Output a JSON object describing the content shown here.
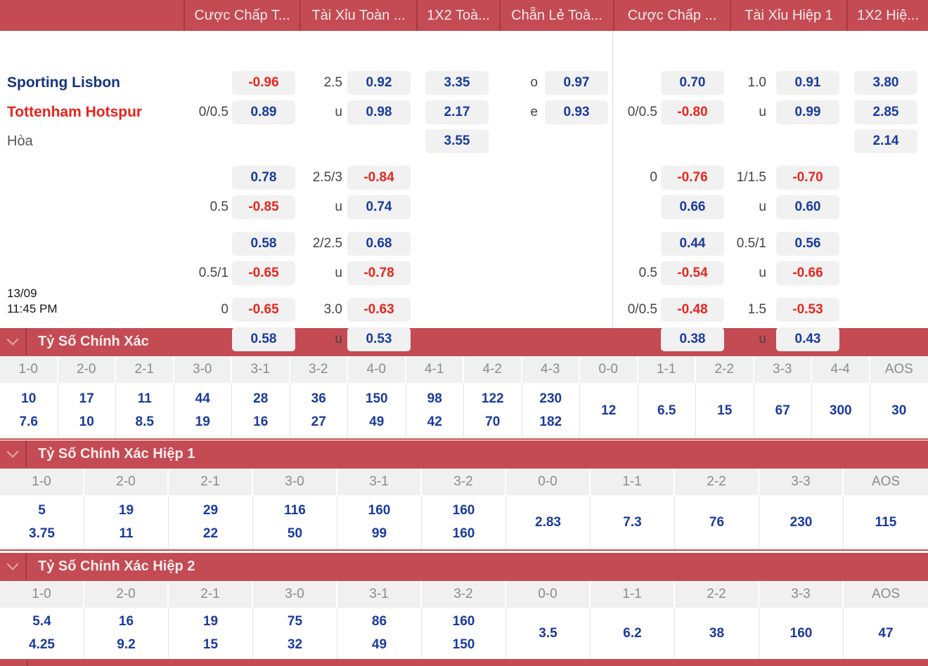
{
  "colors": {
    "bar_red": "#C44B53",
    "bar_divider": "#A23B43",
    "table_border_red": "#C0504D",
    "odds_blue": "#1A3A9E",
    "odds_red": "#E8261E",
    "box_bg": "#F1F1F1",
    "home_blue": "#17357E",
    "away_red": "#E8231B"
  },
  "top_header": {
    "columns": [
      "",
      "Cược Chấp T...",
      "Tài Xỉu Toàn ...",
      "1X2 Toà...",
      "Chẵn Lẻ Toà...",
      "Cược Chấp ...",
      "Tài Xỉu Hiệp 1",
      "1X2 Hiệ..."
    ]
  },
  "timestamp": {
    "date": "13/09",
    "time": "11:45 PM"
  },
  "odds_grid": {
    "rows": [
      {
        "name": "Sporting Lisbon",
        "style": "home",
        "cells": [
          "",
          "-0.96",
          "2.5",
          "0.92",
          "3.35",
          "o",
          "0.97",
          "",
          "0.70",
          "1.0",
          "0.91",
          "3.80"
        ]
      },
      {
        "name": "Tottenham Hotspur",
        "style": "away",
        "cells": [
          "0/0.5",
          "0.89",
          "u",
          "0.98",
          "2.17",
          "e",
          "0.93",
          "0/0.5",
          "-0.80",
          "u",
          "0.99",
          "2.85"
        ]
      },
      {
        "name": "Hòa",
        "style": "draw",
        "cells": [
          "",
          "",
          "",
          "",
          "3.55",
          "",
          "",
          "",
          "",
          "",
          "",
          "2.14"
        ]
      },
      {
        "name": "",
        "style": "",
        "cells": [
          "",
          "0.78",
          "2.5/3",
          "-0.84",
          "",
          "",
          "",
          "0",
          "-0.76",
          "1/1.5",
          "-0.70",
          ""
        ]
      },
      {
        "name": "",
        "style": "",
        "cells": [
          "0.5",
          "-0.85",
          "u",
          "0.74",
          "",
          "",
          "",
          "",
          "0.66",
          "u",
          "0.60",
          ""
        ]
      },
      {
        "name": "",
        "style": "",
        "cells": [
          "",
          "0.58",
          "2/2.5",
          "0.68",
          "",
          "",
          "",
          "",
          "0.44",
          "0.5/1",
          "0.56",
          ""
        ]
      },
      {
        "name": "",
        "style": "",
        "cells": [
          "0.5/1",
          "-0.65",
          "u",
          "-0.78",
          "",
          "",
          "",
          "0.5",
          "-0.54",
          "u",
          "-0.66",
          ""
        ]
      },
      {
        "name": "",
        "style": "",
        "cells": [
          "0",
          "-0.65",
          "3.0",
          "-0.63",
          "",
          "",
          "",
          "0/0.5",
          "-0.48",
          "1.5",
          "-0.53",
          ""
        ]
      },
      {
        "name": "",
        "style": "",
        "cells": [
          "",
          "0.58",
          "u",
          "0.53",
          "",
          "",
          "",
          "",
          "0.38",
          "u",
          "0.43",
          ""
        ]
      }
    ]
  },
  "sections": [
    {
      "title": "Tỷ Số Chính Xác",
      "columns": [
        {
          "score": "1-0",
          "odds": [
            "10",
            "7.6"
          ]
        },
        {
          "score": "2-0",
          "odds": [
            "17",
            "10"
          ]
        },
        {
          "score": "2-1",
          "odds": [
            "11",
            "8.5"
          ]
        },
        {
          "score": "3-0",
          "odds": [
            "44",
            "19"
          ]
        },
        {
          "score": "3-1",
          "odds": [
            "28",
            "16"
          ]
        },
        {
          "score": "3-2",
          "odds": [
            "36",
            "27"
          ]
        },
        {
          "score": "4-0",
          "odds": [
            "150",
            "49"
          ]
        },
        {
          "score": "4-1",
          "odds": [
            "98",
            "42"
          ]
        },
        {
          "score": "4-2",
          "odds": [
            "122",
            "70"
          ]
        },
        {
          "score": "4-3",
          "odds": [
            "230",
            "182"
          ]
        },
        {
          "score": "0-0",
          "odds": [
            "12"
          ]
        },
        {
          "score": "1-1",
          "odds": [
            "6.5"
          ]
        },
        {
          "score": "2-2",
          "odds": [
            "15"
          ]
        },
        {
          "score": "3-3",
          "odds": [
            "67"
          ]
        },
        {
          "score": "4-4",
          "odds": [
            "300"
          ]
        },
        {
          "score": "AOS",
          "odds": [
            "30"
          ]
        }
      ]
    },
    {
      "title": "Tỷ Số Chính Xác Hiệp 1",
      "columns": [
        {
          "score": "1-0",
          "odds": [
            "5",
            "3.75"
          ]
        },
        {
          "score": "2-0",
          "odds": [
            "19",
            "11"
          ]
        },
        {
          "score": "2-1",
          "odds": [
            "29",
            "22"
          ]
        },
        {
          "score": "3-0",
          "odds": [
            "116",
            "50"
          ]
        },
        {
          "score": "3-1",
          "odds": [
            "160",
            "99"
          ]
        },
        {
          "score": "3-2",
          "odds": [
            "160",
            "160"
          ]
        },
        {
          "score": "0-0",
          "odds": [
            "2.83"
          ]
        },
        {
          "score": "1-1",
          "odds": [
            "7.3"
          ]
        },
        {
          "score": "2-2",
          "odds": [
            "76"
          ]
        },
        {
          "score": "3-3",
          "odds": [
            "230"
          ]
        },
        {
          "score": "AOS",
          "odds": [
            "115"
          ]
        }
      ]
    },
    {
      "title": "Tỷ Số Chính Xác Hiệp 2",
      "columns": [
        {
          "score": "1-0",
          "odds": [
            "5.4",
            "4.25"
          ]
        },
        {
          "score": "2-0",
          "odds": [
            "16",
            "9.2"
          ]
        },
        {
          "score": "2-1",
          "odds": [
            "19",
            "15"
          ]
        },
        {
          "score": "3-0",
          "odds": [
            "75",
            "32"
          ]
        },
        {
          "score": "3-1",
          "odds": [
            "86",
            "49"
          ]
        },
        {
          "score": "3-2",
          "odds": [
            "160",
            "150"
          ]
        },
        {
          "score": "0-0",
          "odds": [
            "3.5"
          ]
        },
        {
          "score": "1-1",
          "odds": [
            "6.2"
          ]
        },
        {
          "score": "2-2",
          "odds": [
            "38"
          ]
        },
        {
          "score": "3-3",
          "odds": [
            "160"
          ]
        },
        {
          "score": "AOS",
          "odds": [
            "47"
          ]
        }
      ]
    }
  ]
}
